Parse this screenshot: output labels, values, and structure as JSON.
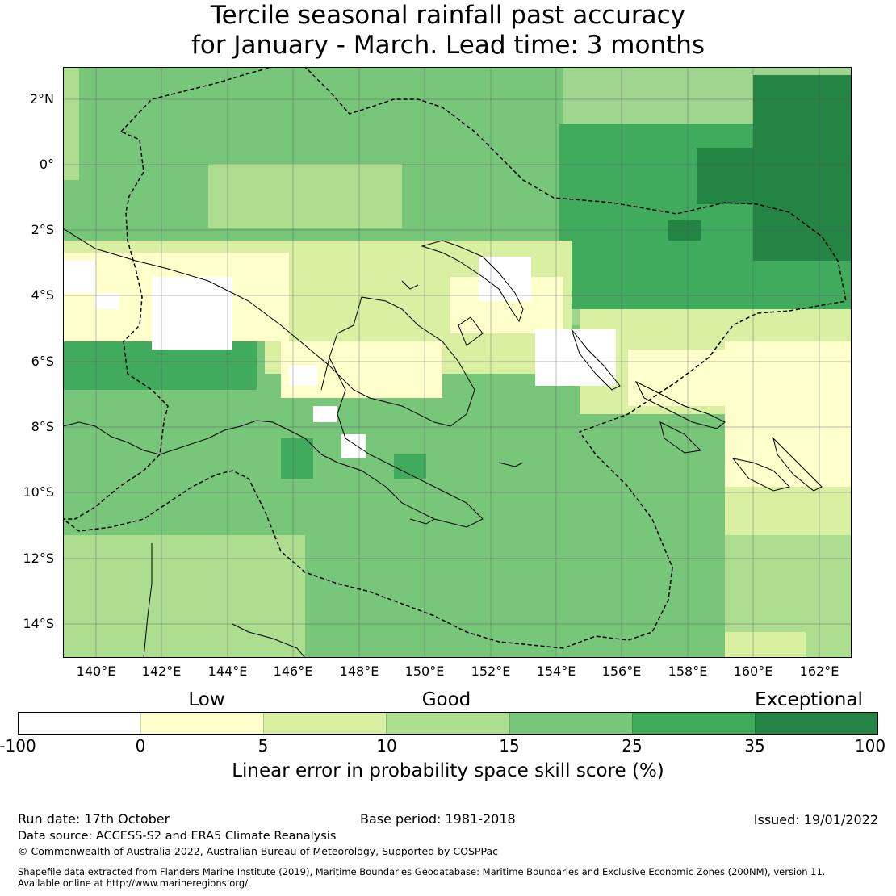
{
  "title_line1": "Tercile seasonal rainfall past accuracy",
  "title_line2": "for January - March. Lead time: 3 months",
  "lat_labels": [
    "2°N",
    "0°",
    "2°S",
    "4°S",
    "6°S",
    "8°S",
    "10°S",
    "12°S",
    "14°S"
  ],
  "lon_labels": [
    "140°E",
    "142°E",
    "144°E",
    "146°E",
    "148°E",
    "150°E",
    "152°E",
    "154°E",
    "156°E",
    "158°E",
    "160°E",
    "162°E"
  ],
  "categories": [
    "Low",
    "Good",
    "Exceptional"
  ],
  "colorbar": {
    "ticks": [
      "-100",
      "0",
      "5",
      "10",
      "15",
      "25",
      "35",
      "100"
    ],
    "colors": [
      "#ffffff",
      "#ffffcc",
      "#d9f0a3",
      "#addd8e",
      "#78c679",
      "#41ab5d",
      "#238443"
    ],
    "label": "Linear error in probability space skill score (%)"
  },
  "footer": {
    "run_date": "Run date: 17th October",
    "base_period": "Base period: 1981-2018",
    "issued": "Issued: 19/01/2022",
    "data_source": "Data source: ACCESS-S2 and ERA5 Climate Reanalysis",
    "copyright": "© Commonwealth of Australia 2022, Australian Bureau of Meteorology, Supported by COSPPac",
    "shapefile_line1": "Shapefile data extracted from Flanders Marine Institute (2019), Maritime Boundaries Geodatabase: Maritime Boundaries and Exclusive Economic Zones (200NM), version 11.",
    "shapefile_line2": "Available online at http://www.marineregions.org/."
  }
}
